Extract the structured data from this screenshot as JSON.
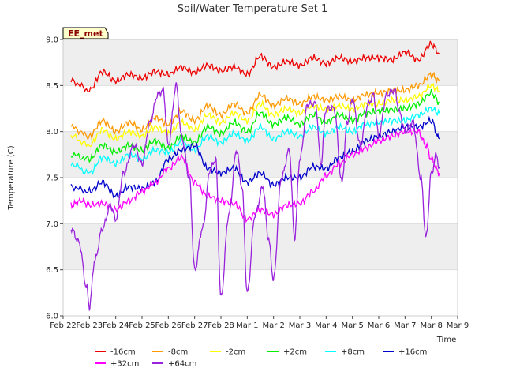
{
  "chart_data": {
    "type": "line",
    "title": "Soil/Water Temperature Set 1",
    "xlabel": "Time",
    "ylabel": "Temperature (C)",
    "badge": "EE_met",
    "x_ticks": [
      "Feb 22",
      "Feb 23",
      "Feb 24",
      "Feb 25",
      "Feb 26",
      "Feb 27",
      "Feb 28",
      "Mar 1",
      "Mar 2",
      "Mar 3",
      "Mar 4",
      "Mar 5",
      "Mar 6",
      "Mar 7",
      "Mar 8",
      "Mar 9"
    ],
    "xlim": [
      0,
      15
    ],
    "ylim": [
      6.0,
      9.0
    ],
    "y_ticks": [
      "6.0",
      "6.5",
      "7.0",
      "7.5",
      "8.0",
      "8.5",
      "9.0"
    ],
    "grid": "alternating horizontal bands",
    "legend_position": "bottom",
    "series": [
      {
        "name": "-16cm",
        "color": "#ee0000",
        "x": [
          0.3,
          1,
          1.5,
          2,
          2.5,
          3,
          3.5,
          4,
          4.5,
          5,
          5.5,
          6,
          6.5,
          7,
          7.5,
          8,
          8.5,
          9,
          9.5,
          10,
          10.5,
          11,
          11.5,
          12,
          12.5,
          13,
          13.5,
          14,
          14.3
        ],
        "y": [
          8.55,
          8.45,
          8.65,
          8.55,
          8.62,
          8.58,
          8.65,
          8.62,
          8.7,
          8.64,
          8.72,
          8.66,
          8.7,
          8.62,
          8.82,
          8.7,
          8.76,
          8.72,
          8.8,
          8.74,
          8.8,
          8.76,
          8.8,
          8.8,
          8.78,
          8.86,
          8.78,
          8.95,
          8.85
        ]
      },
      {
        "name": "-8cm",
        "color": "#ff9900",
        "x": [
          0.3,
          1,
          1.5,
          2,
          2.5,
          3,
          3.5,
          4,
          4.5,
          5,
          5.5,
          6,
          6.5,
          7,
          7.5,
          8,
          8.5,
          9,
          9.5,
          10,
          10.5,
          11,
          11.5,
          12,
          12.5,
          13,
          13.5,
          14,
          14.3
        ],
        "y": [
          8.05,
          7.95,
          8.12,
          8.0,
          8.1,
          8.02,
          8.15,
          8.08,
          8.22,
          8.12,
          8.28,
          8.18,
          8.3,
          8.2,
          8.4,
          8.28,
          8.36,
          8.3,
          8.38,
          8.34,
          8.38,
          8.34,
          8.4,
          8.42,
          8.44,
          8.45,
          8.5,
          8.62,
          8.55
        ]
      },
      {
        "name": "-2cm",
        "color": "#ffff00",
        "x": [
          0.3,
          1,
          1.5,
          2,
          2.5,
          3,
          3.5,
          4,
          4.5,
          5,
          5.5,
          6,
          6.5,
          7,
          7.5,
          8,
          8.5,
          9,
          9.5,
          10,
          10.5,
          11,
          11.5,
          12,
          12.5,
          13,
          13.5,
          14,
          14.3
        ],
        "y": [
          7.95,
          7.85,
          8.02,
          7.92,
          8.0,
          7.95,
          8.05,
          7.98,
          8.1,
          8.02,
          8.18,
          8.1,
          8.2,
          8.12,
          8.3,
          8.18,
          8.25,
          8.2,
          8.28,
          8.24,
          8.28,
          8.24,
          8.3,
          8.3,
          8.34,
          8.34,
          8.38,
          8.5,
          8.44
        ]
      },
      {
        "name": "+2cm",
        "color": "#00ee00",
        "x": [
          0.3,
          1,
          1.5,
          2,
          2.5,
          3,
          3.5,
          4,
          4.5,
          5,
          5.5,
          6,
          6.5,
          7,
          7.5,
          8,
          8.5,
          9,
          9.5,
          10,
          10.5,
          11,
          11.5,
          12,
          12.5,
          13,
          13.5,
          14,
          14.3
        ],
        "y": [
          7.75,
          7.7,
          7.85,
          7.78,
          7.85,
          7.8,
          7.9,
          7.82,
          7.95,
          7.88,
          8.05,
          7.98,
          8.1,
          8.0,
          8.2,
          8.08,
          8.15,
          8.08,
          8.18,
          8.1,
          8.18,
          8.12,
          8.2,
          8.22,
          8.24,
          8.25,
          8.3,
          8.42,
          8.32
        ]
      },
      {
        "name": "+8cm",
        "color": "#00ffff",
        "x": [
          0.3,
          1,
          1.5,
          2,
          2.5,
          3,
          3.5,
          4,
          4.5,
          5,
          5.5,
          6,
          6.5,
          7,
          7.5,
          8,
          8.5,
          9,
          9.5,
          10,
          10.5,
          11,
          11.5,
          12,
          12.5,
          13,
          13.5,
          14,
          14.3
        ],
        "y": [
          7.65,
          7.55,
          7.72,
          7.65,
          7.75,
          7.7,
          7.8,
          7.78,
          7.88,
          7.8,
          7.95,
          7.88,
          7.98,
          7.9,
          8.05,
          7.92,
          8.0,
          7.95,
          8.05,
          7.98,
          8.05,
          8.0,
          8.08,
          8.1,
          8.12,
          8.12,
          8.18,
          8.25,
          8.2
        ]
      },
      {
        "name": "+16cm",
        "color": "#0000cc",
        "x": [
          0.3,
          1,
          1.5,
          2,
          2.5,
          3,
          3.5,
          4,
          4.5,
          5,
          5.5,
          6,
          6.5,
          7,
          7.5,
          8,
          8.5,
          9,
          9.5,
          10,
          10.5,
          11,
          11.5,
          12,
          12.5,
          13,
          13.5,
          14,
          14.3
        ],
        "y": [
          7.4,
          7.35,
          7.45,
          7.3,
          7.4,
          7.38,
          7.45,
          7.7,
          7.8,
          7.85,
          7.6,
          7.55,
          7.6,
          7.45,
          7.55,
          7.42,
          7.5,
          7.5,
          7.62,
          7.6,
          7.72,
          7.78,
          7.9,
          7.95,
          8.0,
          8.05,
          8.05,
          8.12,
          7.92
        ]
      },
      {
        "name": "+32cm",
        "color": "#ff00ff",
        "x": [
          0.3,
          0.7,
          1,
          1.5,
          2,
          2.5,
          3,
          3.5,
          4,
          4.5,
          5,
          5.5,
          6,
          6.5,
          7,
          7.5,
          8,
          8.5,
          9,
          9.5,
          10,
          10.5,
          11,
          11.5,
          12,
          12.5,
          13,
          13.5,
          13.8,
          14,
          14.3
        ],
        "y": [
          7.2,
          7.25,
          7.2,
          7.22,
          7.15,
          7.25,
          7.35,
          7.45,
          7.6,
          7.72,
          7.45,
          7.3,
          7.25,
          7.22,
          7.05,
          7.15,
          7.1,
          7.2,
          7.22,
          7.35,
          7.52,
          7.65,
          7.75,
          7.82,
          7.9,
          7.95,
          8.0,
          8.0,
          7.85,
          7.7,
          7.55
        ]
      },
      {
        "name": "+64cm",
        "color": "#9922dd",
        "x": [
          0.3,
          0.6,
          0.9,
          1.0,
          1.2,
          1.5,
          1.8,
          2.0,
          2.3,
          2.7,
          3.0,
          3.3,
          3.6,
          3.8,
          4.0,
          4.3,
          4.5,
          4.8,
          5.0,
          5.3,
          5.6,
          5.8,
          6.0,
          6.3,
          6.6,
          6.8,
          7.0,
          7.3,
          7.6,
          7.8,
          8.0,
          8.3,
          8.6,
          8.8,
          9.0,
          9.3,
          9.6,
          9.8,
          10.0,
          10.3,
          10.6,
          10.8,
          11.0,
          11.3,
          11.6,
          11.8,
          12.0,
          12.3,
          12.6,
          12.8,
          13.0,
          13.3,
          13.6,
          13.8,
          14.0,
          14.2,
          14.3
        ],
        "y": [
          6.95,
          6.8,
          6.3,
          6.1,
          6.6,
          6.95,
          7.2,
          7.05,
          7.55,
          7.85,
          7.65,
          8.1,
          8.4,
          8.45,
          7.85,
          8.5,
          7.95,
          7.5,
          6.5,
          6.95,
          7.6,
          7.7,
          6.2,
          7.1,
          7.8,
          7.4,
          6.25,
          7.1,
          7.4,
          6.85,
          6.4,
          7.5,
          7.8,
          6.85,
          7.7,
          8.3,
          8.3,
          7.65,
          8.25,
          8.25,
          7.45,
          8.1,
          8.35,
          7.85,
          8.3,
          8.4,
          7.95,
          8.4,
          8.45,
          8.2,
          8.0,
          8.1,
          7.5,
          6.85,
          7.55,
          7.75,
          7.6
        ]
      }
    ]
  }
}
